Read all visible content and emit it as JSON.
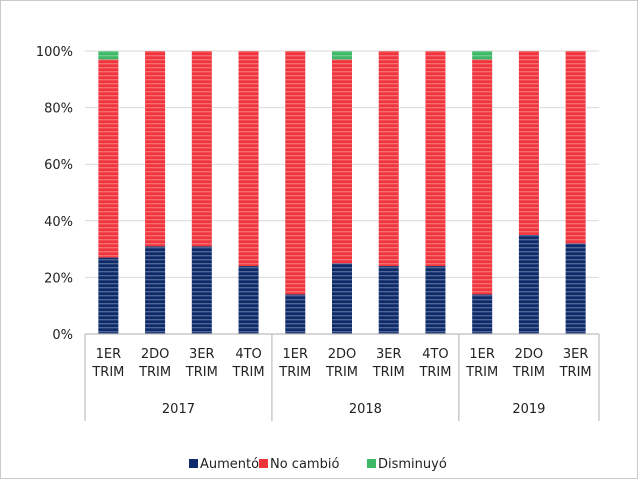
{
  "chart_data": {
    "type": "bar",
    "stacked": true,
    "percent": true,
    "categories": [
      {
        "line1": "1ER",
        "line2": "TRIM",
        "group": "2017"
      },
      {
        "line1": "2DO",
        "line2": "TRIM",
        "group": "2017"
      },
      {
        "line1": "3ER",
        "line2": "TRIM",
        "group": "2017"
      },
      {
        "line1": "4TO",
        "line2": "TRIM",
        "group": "2017"
      },
      {
        "line1": "1ER",
        "line2": "TRIM",
        "group": "2018"
      },
      {
        "line1": "2DO",
        "line2": "TRIM",
        "group": "2018"
      },
      {
        "line1": "3ER",
        "line2": "TRIM",
        "group": "2018"
      },
      {
        "line1": "4TO",
        "line2": "TRIM",
        "group": "2018"
      },
      {
        "line1": "1ER",
        "line2": "TRIM",
        "group": "2019"
      },
      {
        "line1": "2DO",
        "line2": "TRIM",
        "group": "2019"
      },
      {
        "line1": "3ER",
        "line2": "TRIM",
        "group": "2019"
      }
    ],
    "groups": [
      "2017",
      "2018",
      "2019"
    ],
    "series": [
      {
        "name": "Aumentó",
        "color": "#0d2a6b",
        "values": [
          27,
          31,
          31,
          24,
          14,
          25,
          24,
          24,
          14,
          35,
          32
        ]
      },
      {
        "name": "No cambió",
        "color": "#f0343c",
        "values": [
          70,
          69,
          69,
          76,
          86,
          72,
          76,
          76,
          83,
          65,
          68
        ]
      },
      {
        "name": "Disminuyó",
        "color": "#3cb866",
        "values": [
          3,
          0,
          0,
          0,
          0,
          3,
          0,
          0,
          3,
          0,
          0
        ]
      }
    ],
    "ylim": [
      0,
      100
    ],
    "yticks": [
      "0%",
      "20%",
      "40%",
      "60%",
      "80%",
      "100%"
    ],
    "grid": true,
    "legend_position": "bottom"
  }
}
